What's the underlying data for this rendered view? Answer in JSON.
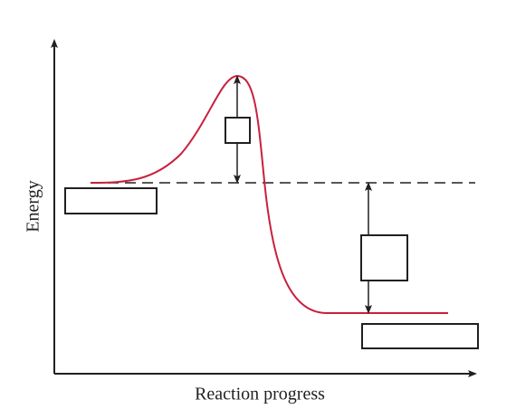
{
  "axes": {
    "y_label": "Energy",
    "x_label": "Reaction progress"
  }
}
